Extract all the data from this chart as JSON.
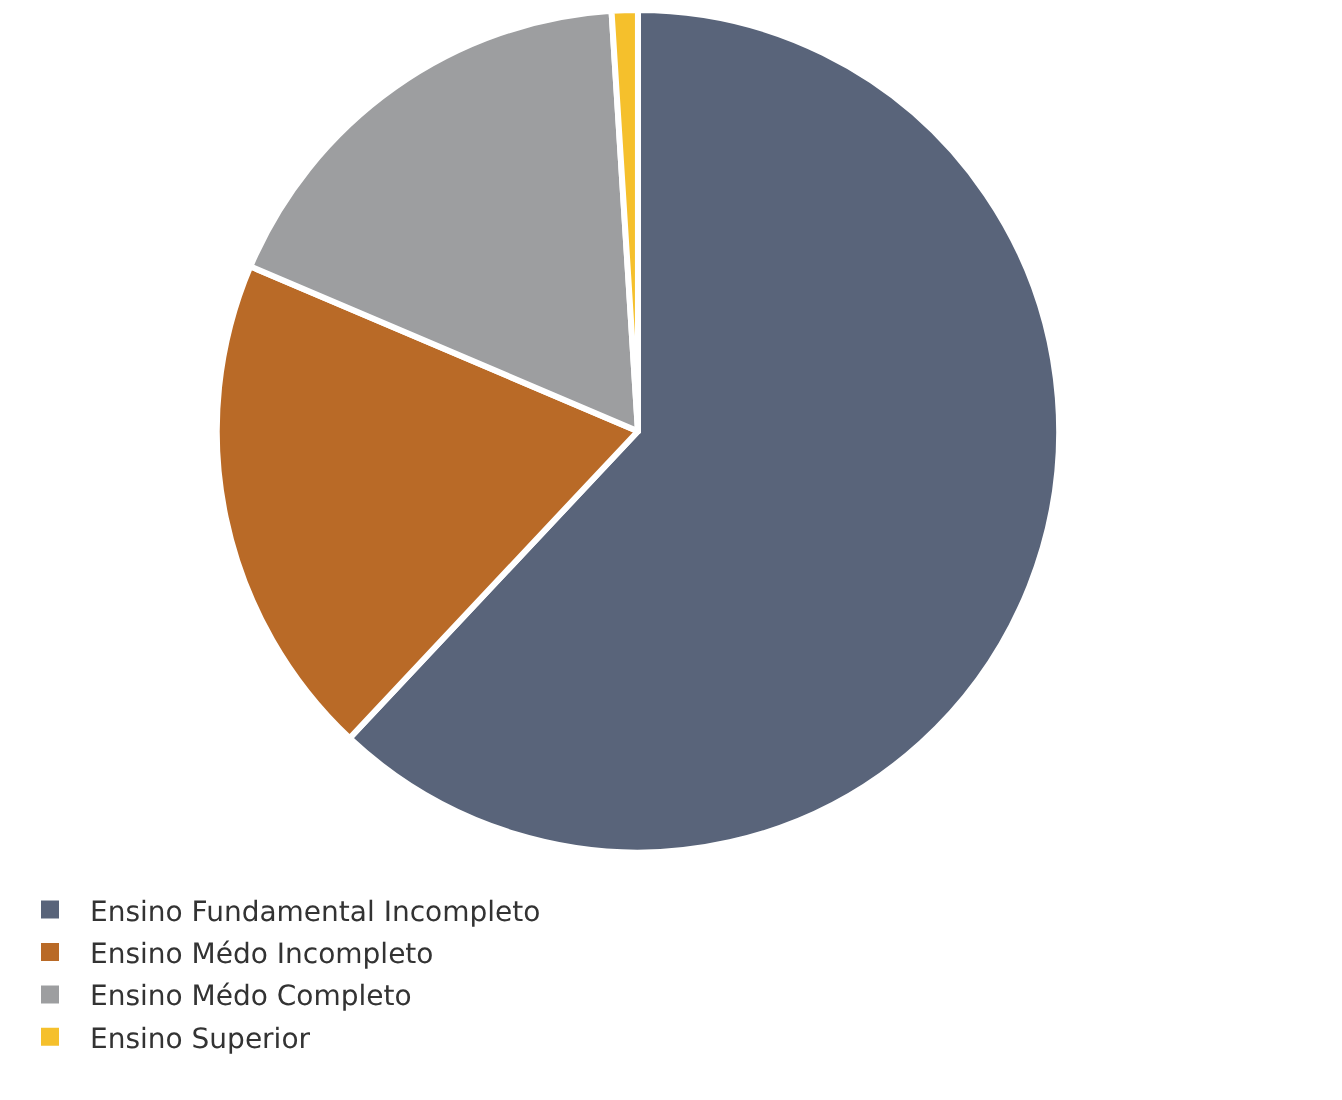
{
  "chart_data": {
    "type": "pie",
    "categories": [
      "Ensino Fundamental Incompleto",
      "Ensino Médo Incompleto",
      "Ensino Médo Completo",
      "Ensino Superior"
    ],
    "values": [
      62,
      19.4,
      17.6,
      1
    ],
    "colors": [
      "#59647a",
      "#b96a27",
      "#9d9ea0",
      "#f5c02c"
    ],
    "legend": "bottom"
  }
}
